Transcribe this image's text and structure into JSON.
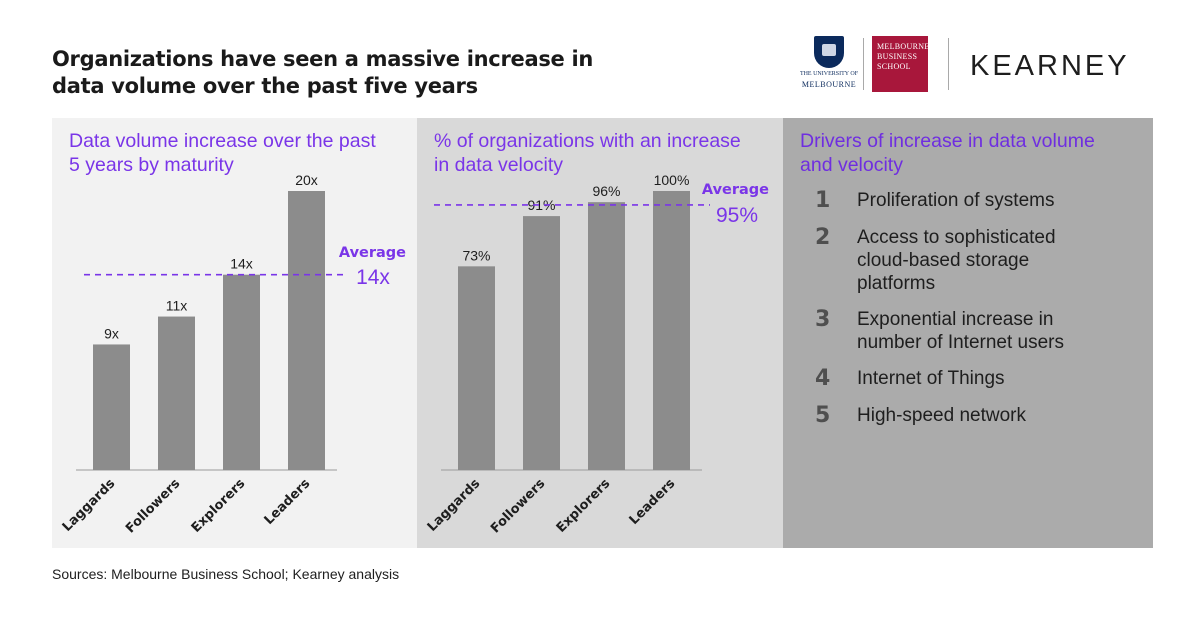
{
  "headline": "Organizations have seen a massive increase in data volume over the past five years",
  "logos": {
    "uom_line1": "THE UNIVERSITY OF",
    "uom_line2": "MELBOURNE",
    "mbs_line1": "MELBOURNE",
    "mbs_line2": "BUSINESS",
    "mbs_line3": "SCHOOL",
    "kearney": "KEARNEY"
  },
  "colors": {
    "accent": "#7a35e8",
    "bar": "#8c8c8c",
    "panel1": "#f2f2f2",
    "panel2": "#d9d9d9",
    "panel3": "#ababab"
  },
  "chart_data": [
    {
      "type": "bar",
      "title_line1": "Data volume increase over the past",
      "title_line2": "5 years by maturity",
      "categories": [
        "Laggards",
        "Followers",
        "Explorers",
        "Leaders"
      ],
      "values": [
        9,
        11,
        14,
        20
      ],
      "value_labels": [
        "9x",
        "11x",
        "14x",
        "20x"
      ],
      "ylim": [
        0,
        20
      ],
      "average": {
        "label": "Average",
        "value": 14,
        "value_label": "14x"
      }
    },
    {
      "type": "bar",
      "title_line1": "% of organizations with an increase",
      "title_line2": "in data velocity",
      "categories": [
        "Laggards",
        "Followers",
        "Explorers",
        "Leaders"
      ],
      "values": [
        73,
        91,
        96,
        100
      ],
      "value_labels": [
        "73%",
        "91%",
        "96%",
        "100%"
      ],
      "ylim": [
        0,
        100
      ],
      "average": {
        "label": "Average",
        "value": 95,
        "value_label": "95%"
      }
    }
  ],
  "drivers": {
    "title_line1": "Drivers of increase in data volume",
    "title_line2": "and velocity",
    "items": [
      {
        "num": "1",
        "text": "Proliferation of systems"
      },
      {
        "num": "2",
        "text": "Access to sophisticated cloud-based storage platforms"
      },
      {
        "num": "3",
        "text": "Exponential increase in number of Internet users"
      },
      {
        "num": "4",
        "text": "Internet of Things"
      },
      {
        "num": "5",
        "text": "High-speed network"
      }
    ]
  },
  "source": "Sources: Melbourne Business School; Kearney analysis"
}
